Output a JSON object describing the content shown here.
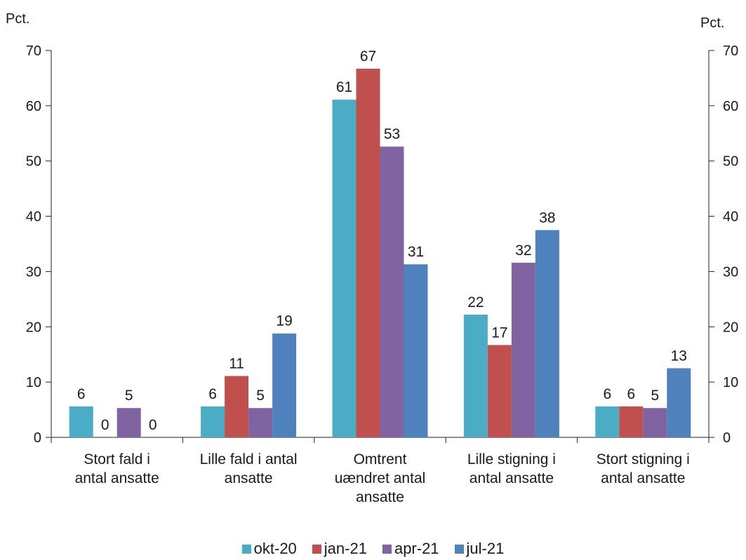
{
  "chart_data": {
    "type": "bar",
    "left_unit": "Pct.",
    "right_unit": "Pct.",
    "categories": [
      [
        "Stort fald i",
        "antal ansatte"
      ],
      [
        "Lille fald i antal",
        "ansatte"
      ],
      [
        "Omtrent",
        "uændret antal",
        "ansatte"
      ],
      [
        "Lille stigning i",
        "antal ansatte"
      ],
      [
        "Stort stigning i",
        "antal ansatte"
      ]
    ],
    "series": [
      {
        "name": "okt-20",
        "color": "#4bacc6",
        "values": [
          5.6,
          5.6,
          61.1,
          22.2,
          5.6
        ],
        "labels": [
          "6",
          "6",
          "61",
          "22",
          "6"
        ]
      },
      {
        "name": "jan-21",
        "color": "#c0504d",
        "values": [
          0,
          11.1,
          66.7,
          16.7,
          5.6
        ],
        "labels": [
          "0",
          "11",
          "67",
          "17",
          "6"
        ]
      },
      {
        "name": "apr-21",
        "color": "#8064a2",
        "values": [
          5.3,
          5.3,
          52.6,
          31.6,
          5.3
        ],
        "labels": [
          "5",
          "5",
          "53",
          "32",
          "5"
        ]
      },
      {
        "name": "jul-21",
        "color": "#4f81bd",
        "values": [
          0,
          18.8,
          31.3,
          37.5,
          12.5
        ],
        "labels": [
          "0",
          "19",
          "31",
          "38",
          "13"
        ]
      }
    ],
    "ylim": [
      0,
      70
    ],
    "yticks": [
      0,
      10,
      20,
      30,
      40,
      50,
      60,
      70
    ],
    "legend_position": "bottom"
  }
}
